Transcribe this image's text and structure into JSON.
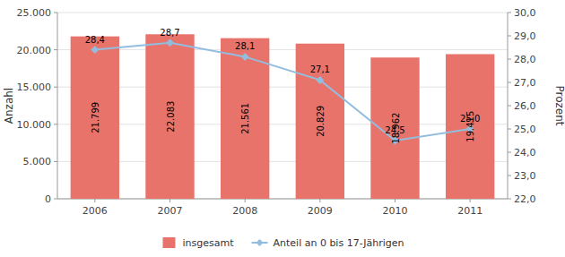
{
  "chart_data": {
    "type": "bar",
    "categories": [
      "2006",
      "2007",
      "2008",
      "2009",
      "2010",
      "2011"
    ],
    "series": [
      {
        "name": "insgesamt",
        "type": "bar",
        "color": "#E8736A",
        "values": [
          21799,
          22083,
          21561,
          20829,
          18962,
          19415
        ],
        "value_labels": [
          "21.799",
          "22.083",
          "21.561",
          "20.829",
          "18.962",
          "19.415"
        ]
      },
      {
        "name": "Anteil an 0 bis 17-Jährigen",
        "type": "line",
        "axis": "y2",
        "color": "#92BDDF",
        "marker": "diamond",
        "values": [
          28.4,
          28.7,
          28.1,
          27.1,
          24.5,
          25.0
        ],
        "value_labels": [
          "28,4",
          "28,7",
          "28,1",
          "27,1",
          "24,5",
          "25,0"
        ]
      }
    ],
    "ylim": [
      0,
      25000
    ],
    "yticks": [
      0,
      {
        "value": 5000,
        "label": "5.000"
      },
      {
        "value": 10000,
        "label": "10.000"
      },
      {
        "value": 15000,
        "label": "15.000"
      },
      {
        "value": 20000,
        "label": "20.000"
      },
      {
        "value": 25000,
        "label": "25.000"
      }
    ],
    "y2lim": [
      22.0,
      30.0
    ],
    "y2ticks": [
      {
        "value": 22.0,
        "label": "22,0"
      },
      {
        "value": 23.0,
        "label": "23,0"
      },
      {
        "value": 24.0,
        "label": "24,0"
      },
      {
        "value": 25.0,
        "label": "25,0"
      },
      {
        "value": 26.0,
        "label": "26,0"
      },
      {
        "value": 27.0,
        "label": "27,0"
      },
      {
        "value": 28.0,
        "label": "28,0"
      },
      {
        "value": 29.0,
        "label": "29,0"
      },
      {
        "value": 30.0,
        "label": "30,0"
      }
    ],
    "ylabel": "Anzahl",
    "y2label": "Prozent",
    "grid": true,
    "legend": "bottom",
    "data_labels": true
  }
}
